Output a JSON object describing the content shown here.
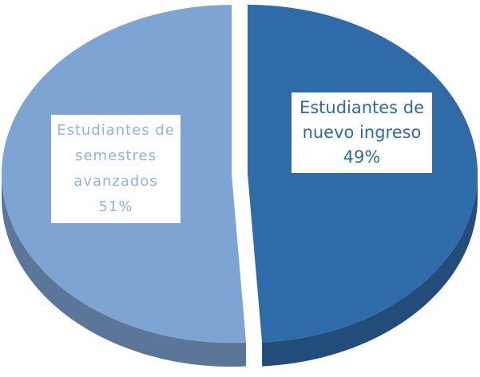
{
  "chart_data": {
    "type": "pie",
    "categories": [
      "Estudiantes de nuevo ingreso",
      "Estudiantes de semestres avanzados"
    ],
    "values": [
      49,
      51
    ],
    "value_labels": [
      "49%",
      "51%"
    ],
    "colors": [
      "#2f6aa9",
      "#7ea4d3"
    ]
  }
}
